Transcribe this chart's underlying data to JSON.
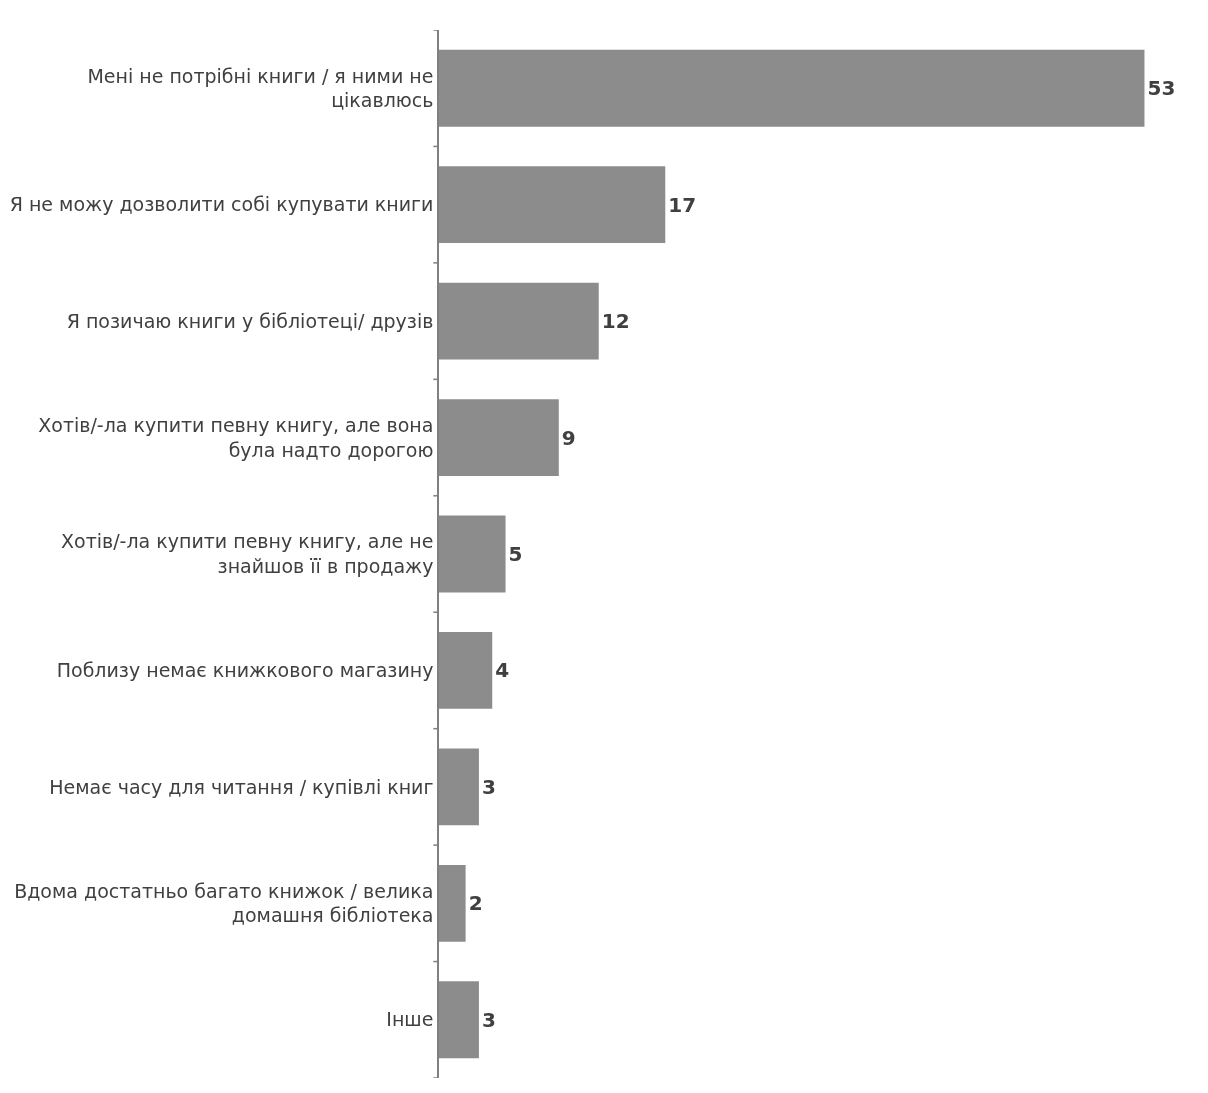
{
  "chart_data": {
    "type": "bar",
    "orientation": "horizontal",
    "categories": [
      "Мені не потрібні книги / я ними не цікавлюсь",
      "Я не можу дозволити собі купувати книги",
      "Я позичаю книги у бібліотеці/ друзів",
      "Хотів/-ла купити певну книгу, але вона була надто дорогою",
      "Хотів/-ла купити певну книгу, але не знайшов її в продажу",
      "Поблизу немає книжкового магазину",
      "Немає часу для читання / купівлі книг",
      "Вдома достатньо багато книжок / велика домашня бібліотека",
      "Інше"
    ],
    "values": [
      53,
      17,
      12,
      9,
      5,
      4,
      3,
      2,
      3
    ],
    "color": "#8c8c8c",
    "data_labels": true,
    "tick_labels": "y"
  }
}
